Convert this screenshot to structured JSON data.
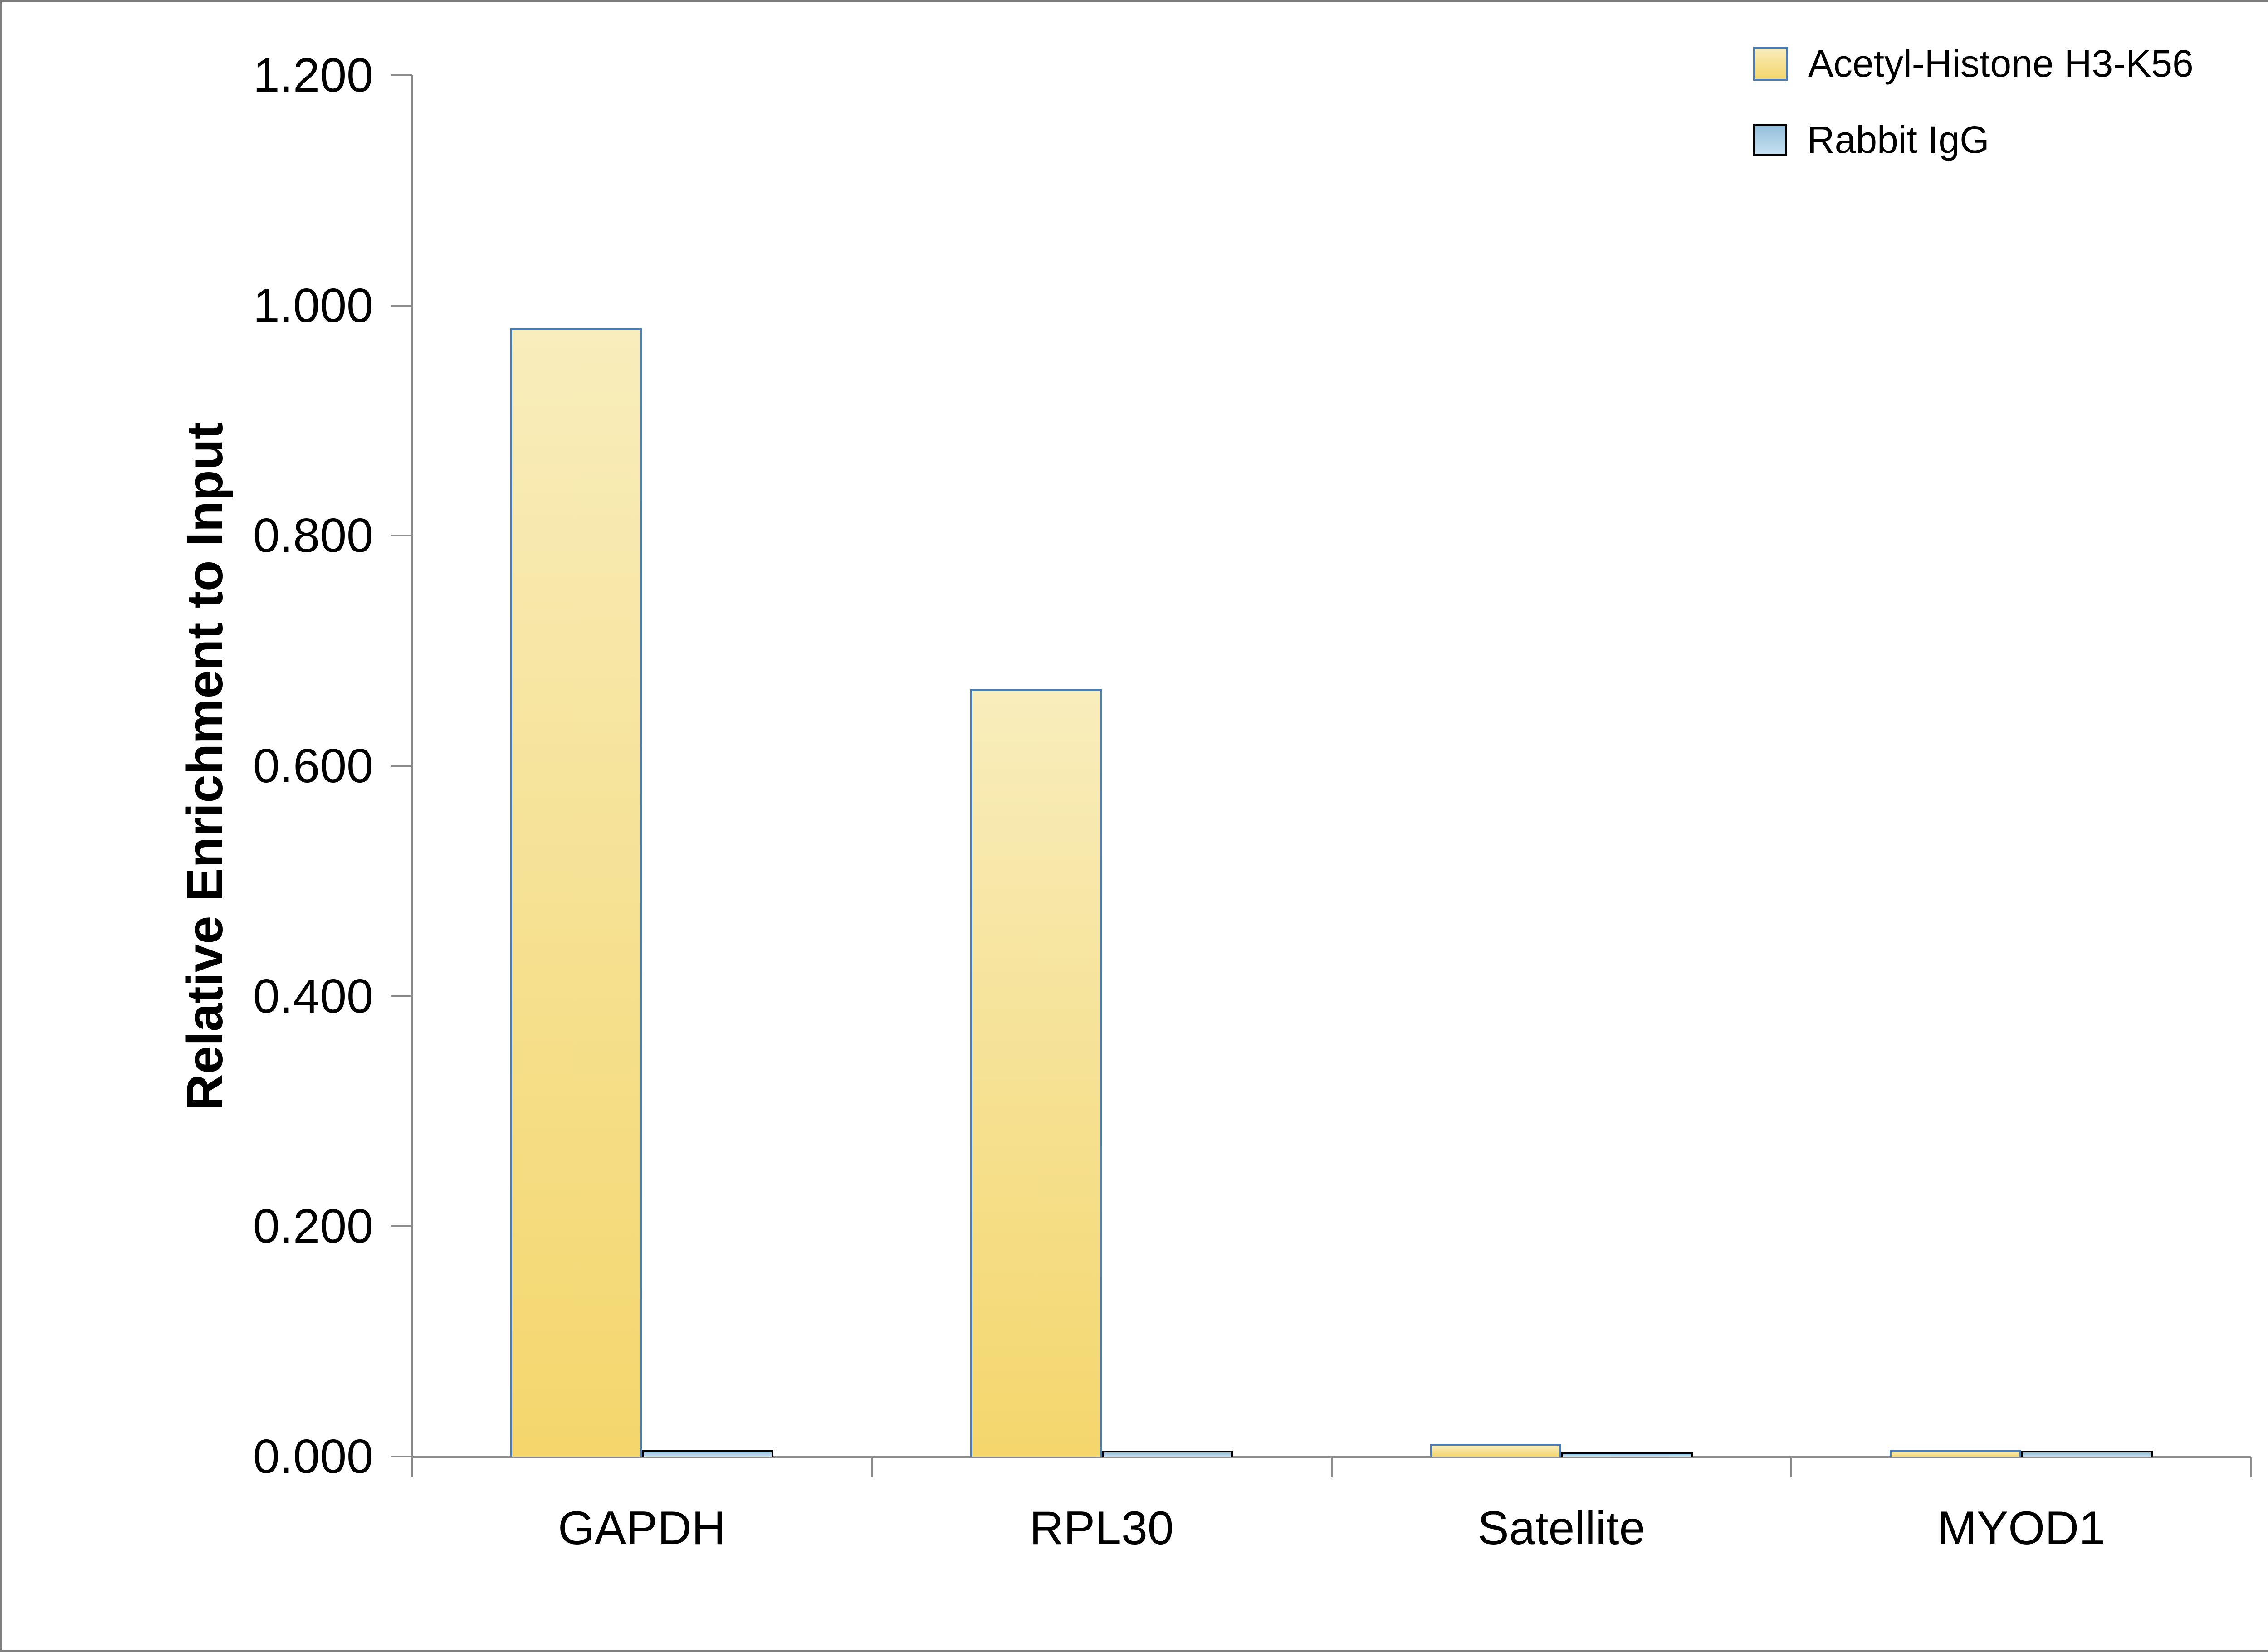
{
  "chart_data": {
    "type": "bar",
    "title": "",
    "xlabel": "",
    "ylabel": "Relative Enrichment to Input",
    "categories": [
      "GAPDH",
      "RPL30",
      "Satellite",
      "MYOD1"
    ],
    "series": [
      {
        "name": "Acetyl-Histone H3-K56",
        "values": [
          0.98,
          0.667,
          0.011,
          0.006
        ],
        "fill_top": "#F8EDBC",
        "fill_bottom": "#F4D66C",
        "border": "#4A7CB5"
      },
      {
        "name": "Rabbit IgG",
        "values": [
          0.006,
          0.005,
          0.004,
          0.005
        ],
        "fill_top": "#93BFDC",
        "fill_bottom": "#C6E0EF",
        "border": "#000000"
      }
    ],
    "ylim": [
      0,
      1.2
    ],
    "y_tick_labels": [
      "0.000",
      "0.200",
      "0.400",
      "0.600",
      "0.800",
      "1.000",
      "1.200"
    ],
    "grid": false,
    "legend_position": "top-right",
    "axis_color": "#8C8C8C",
    "frame_color": "#7F7F7F",
    "background_color": "#FFFFFF"
  }
}
